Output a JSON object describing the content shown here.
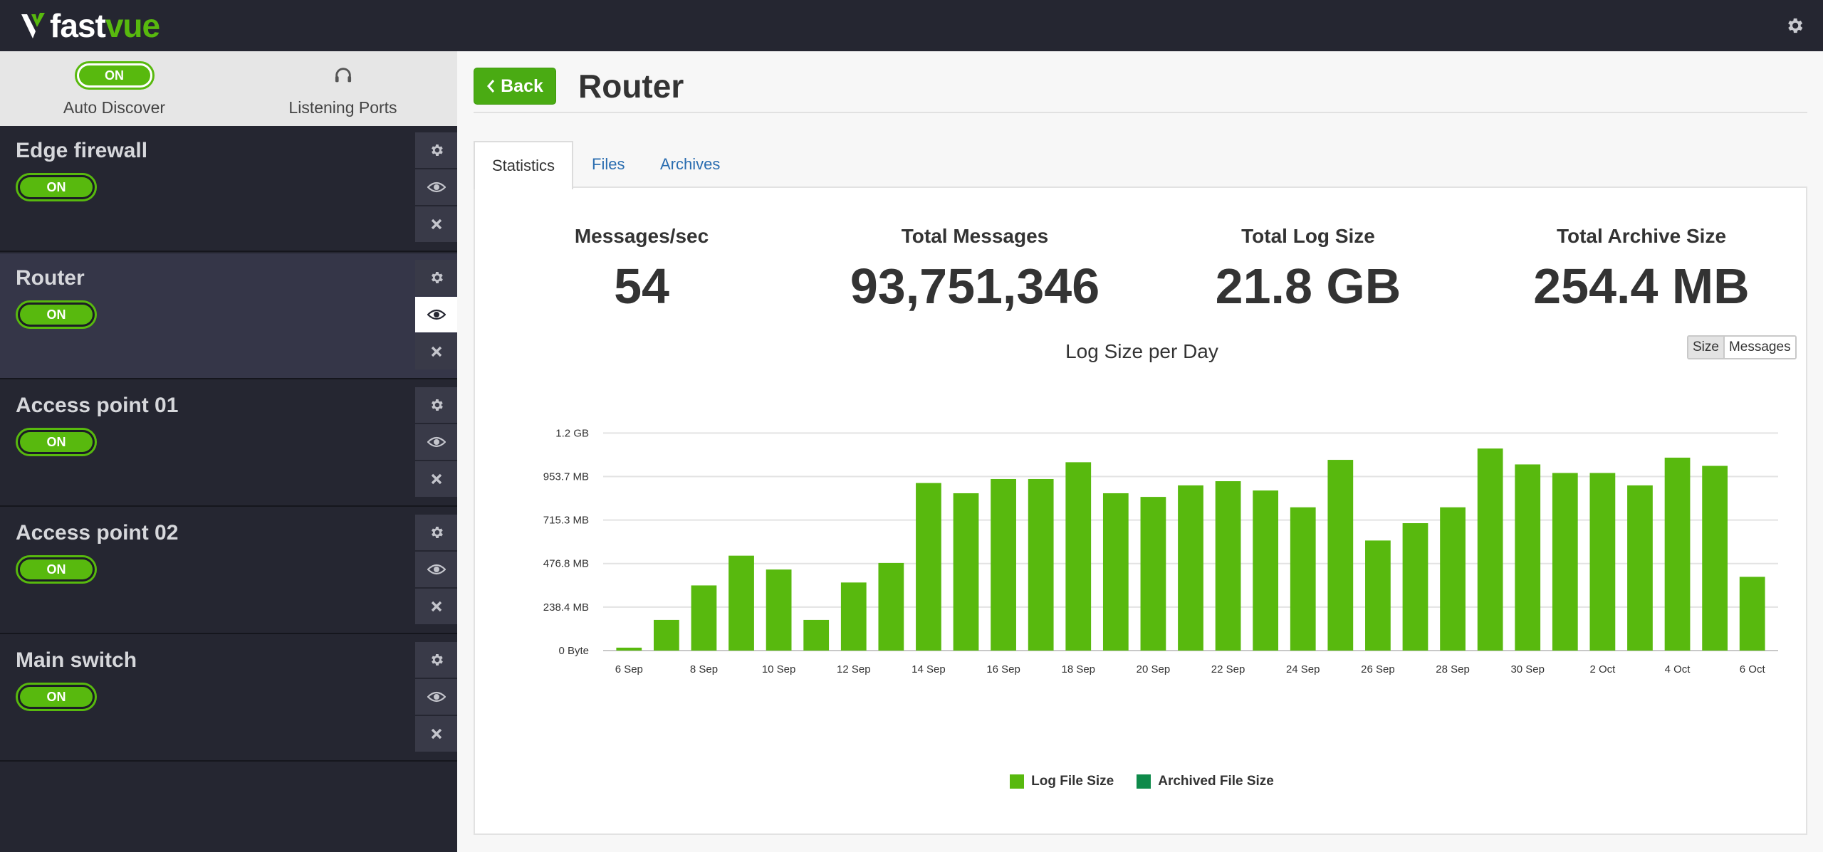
{
  "app": {
    "logo_fast": "fast",
    "logo_vue": "vue"
  },
  "sidebar": {
    "auto_discover": {
      "toggle": "ON",
      "label": "Auto Discover"
    },
    "listening_ports": {
      "label": "Listening Ports"
    },
    "devices": [
      {
        "name": "Edge firewall",
        "toggle": "ON"
      },
      {
        "name": "Router",
        "toggle": "ON",
        "selected": true
      },
      {
        "name": "Access point 01",
        "toggle": "ON"
      },
      {
        "name": "Access point 02",
        "toggle": "ON"
      },
      {
        "name": "Main switch",
        "toggle": "ON"
      }
    ]
  },
  "main": {
    "back_label": "Back",
    "title": "Router",
    "tabs": [
      {
        "label": "Statistics",
        "active": true
      },
      {
        "label": "Files"
      },
      {
        "label": "Archives"
      }
    ],
    "stats": [
      {
        "label": "Messages/sec",
        "value": "54"
      },
      {
        "label": "Total Messages",
        "value": "93,751,346"
      },
      {
        "label": "Total Log Size",
        "value": "21.8 GB"
      },
      {
        "label": "Total Archive Size",
        "value": "254.4 MB"
      }
    ],
    "chart_toggle": {
      "size": "Size",
      "messages": "Messages",
      "selected": "Size"
    }
  },
  "colors": {
    "accent": "#58b90e",
    "archived": "#0e8a4a",
    "sidebar_bg": "#252631",
    "link": "#2a6db0"
  },
  "chart_data": {
    "type": "bar",
    "title": "Log Size per Day",
    "xlabel": "",
    "ylabel": "",
    "y_unit": "MB",
    "ylim": [
      0,
      1220.7
    ],
    "y_ticks": [
      0,
      238.4,
      476.8,
      715.3,
      953.7,
      1192.1
    ],
    "y_tick_labels": [
      "0 Byte",
      "238.4 MB",
      "476.8 MB",
      "715.3 MB",
      "953.7 MB",
      "1.2 GB"
    ],
    "categories": [
      "6 Sep",
      "7 Sep",
      "8 Sep",
      "9 Sep",
      "10 Sep",
      "11 Sep",
      "12 Sep",
      "13 Sep",
      "14 Sep",
      "15 Sep",
      "16 Sep",
      "17 Sep",
      "18 Sep",
      "19 Sep",
      "20 Sep",
      "21 Sep",
      "22 Sep",
      "23 Sep",
      "24 Sep",
      "25 Sep",
      "26 Sep",
      "27 Sep",
      "28 Sep",
      "29 Sep",
      "30 Sep",
      "1 Oct",
      "2 Oct",
      "3 Oct",
      "4 Oct",
      "5 Oct",
      "6 Oct"
    ],
    "x_tick_labels": [
      "6 Sep",
      "",
      "8 Sep",
      "",
      "10 Sep",
      "",
      "12 Sep",
      "",
      "14 Sep",
      "",
      "16 Sep",
      "",
      "18 Sep",
      "",
      "20 Sep",
      "",
      "22 Sep",
      "",
      "24 Sep",
      "",
      "26 Sep",
      "",
      "28 Sep",
      "",
      "30 Sep",
      "",
      "2 Oct",
      "",
      "4 Oct",
      "",
      "6 Oct"
    ],
    "series": [
      {
        "name": "Log File Size",
        "color": "#58b90e",
        "values": [
          16,
          168,
          357,
          520,
          444,
          168,
          373,
          480,
          918,
          862,
          940,
          940,
          1032,
          862,
          842,
          905,
          928,
          877,
          785,
          1045,
          603,
          698,
          785,
          1107,
          1020,
          973,
          973,
          905,
          1057,
          1012,
          404
        ]
      },
      {
        "name": "Archived File Size",
        "color": "#0e8a4a",
        "values": [
          0,
          0,
          0,
          0,
          0,
          0,
          0,
          0,
          0,
          0,
          0,
          0,
          0,
          0,
          0,
          0,
          0,
          0,
          0,
          0,
          0,
          0,
          0,
          0,
          0,
          0,
          0,
          0,
          0,
          0,
          0
        ]
      }
    ],
    "grid": true,
    "legend": "bottom-center"
  }
}
